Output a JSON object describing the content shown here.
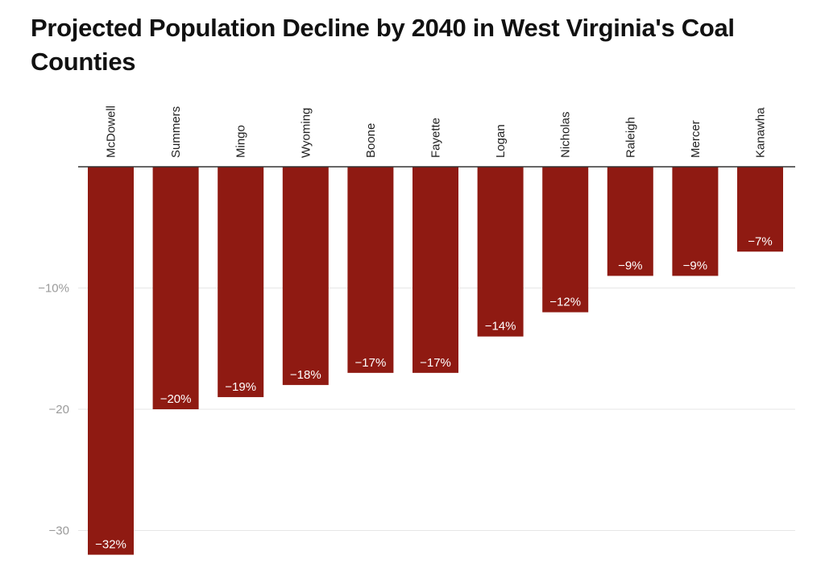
{
  "colors": {
    "bar": "#8f1a12",
    "grid": "#e6e6e6",
    "axis": "#333333",
    "title": "#111111"
  },
  "chart_data": {
    "type": "bar",
    "title": "Projected Population Decline by 2040 in West Virginia's Coal Counties",
    "categories": [
      "McDowell",
      "Summers",
      "Mingo",
      "Wyoming",
      "Boone",
      "Fayette",
      "Logan",
      "Nicholas",
      "Raleigh",
      "Mercer",
      "Kanawha"
    ],
    "values": [
      -32,
      -20,
      -19,
      -18,
      -17,
      -17,
      -14,
      -12,
      -9,
      -9,
      -7
    ],
    "value_labels": [
      "−32%",
      "−20%",
      "−19%",
      "−18%",
      "−17%",
      "−17%",
      "−14%",
      "−12%",
      "−9%",
      "−9%",
      "−7%"
    ],
    "yticks": [
      -10,
      -20,
      -30
    ],
    "ytick_labels": [
      "−10%",
      "−20",
      "−30"
    ],
    "ylim": [
      -32,
      0
    ],
    "xlabel": "",
    "ylabel": "",
    "grid": true,
    "category_labels_position": "top, rotated vertical"
  }
}
